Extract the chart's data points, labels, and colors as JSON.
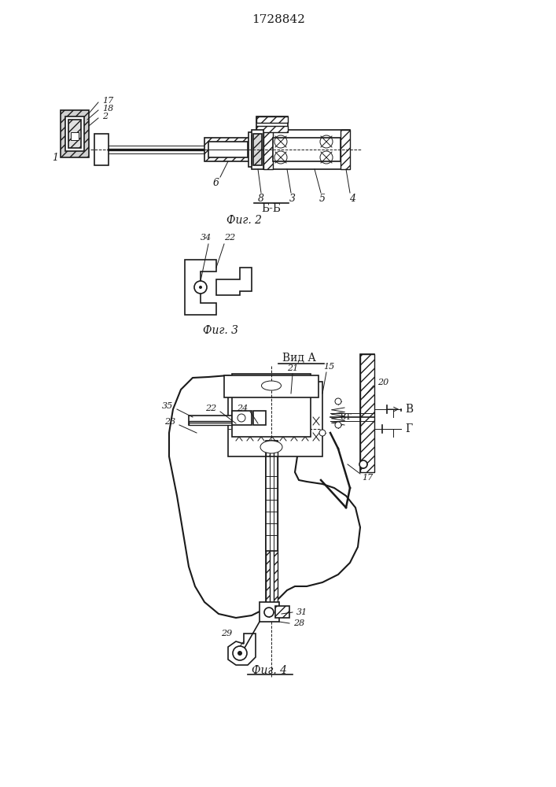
{
  "patent_number": "1728842",
  "fig2_label": "Фиг. 2",
  "fig3_label": "Фиг. 3",
  "fig4_label": "Фиг. 4",
  "section_label": "Б-Б",
  "view_label": "ВидА",
  "bg_color": "#ffffff",
  "line_color": "#1a1a1a",
  "hatch_color": "#333333"
}
